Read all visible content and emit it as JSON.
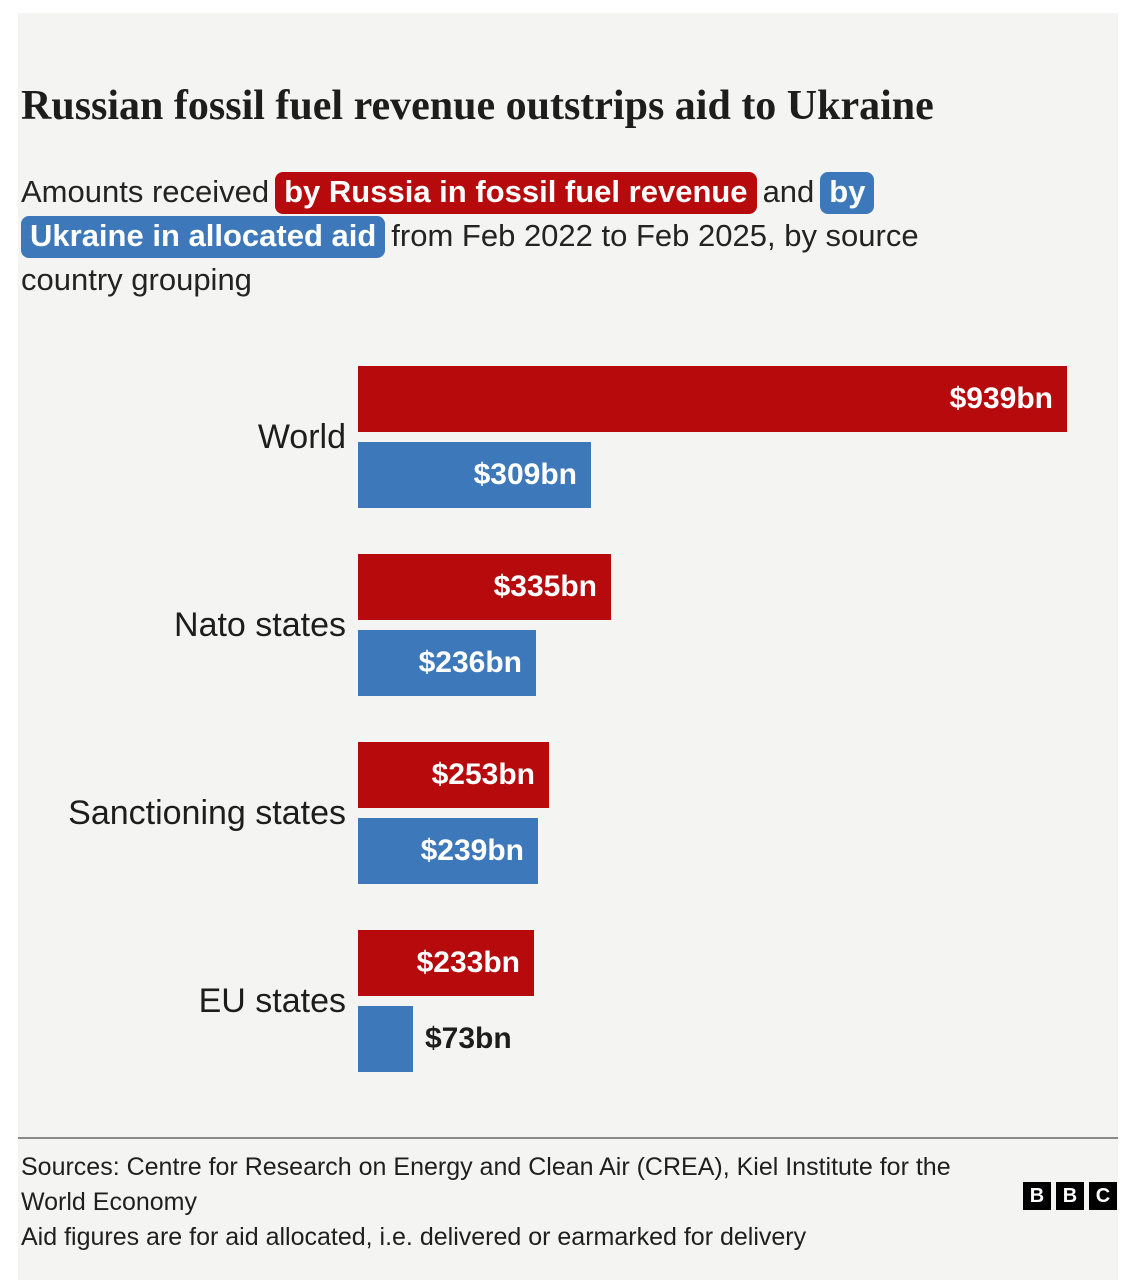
{
  "title": "Russian fossil fuel revenue outstrips aid to Ukraine",
  "subtitle": {
    "line1_pre": "Amounts received",
    "chip_red": "by Russia in fossil fuel revenue",
    "line1_and": "and",
    "chip_blue_by": "by",
    "chip_blue_rest": "Ukraine in allocated aid",
    "line2_rest": "from Feb 2022 to Feb 2025, by source",
    "line3": "country grouping"
  },
  "colors": {
    "russia_red": "#b60a0c",
    "ukraine_blue": "#3d78ba",
    "panel_bg": "#f4f4f3",
    "text": "#1d1d1b",
    "divider": "#8b8b8b"
  },
  "chart_data": {
    "type": "bar",
    "orientation": "horizontal",
    "unit": "USD billions",
    "period": "Feb 2022 to Feb 2025",
    "categories": [
      "World",
      "Nato states",
      "Sanctioning states",
      "EU states"
    ],
    "series": [
      {
        "name": "Russia fossil fuel revenue",
        "color_key": "russia_red",
        "values": [
          939,
          335,
          253,
          233
        ],
        "labels": [
          "$939bn",
          "$335bn",
          "$253bn",
          "$233bn"
        ]
      },
      {
        "name": "Ukraine allocated aid",
        "color_key": "ukraine_blue",
        "values": [
          309,
          236,
          239,
          73
        ],
        "labels": [
          "$309bn",
          "$236bn",
          "$239bn",
          "$73bn"
        ]
      }
    ],
    "xmax": 939,
    "grid": false,
    "legend": "inline-subtitle-highlights"
  },
  "footer": {
    "sources": "Sources: Centre for Research on Energy and Clean Air (CREA), Kiel Institute for the World Economy",
    "note": "Aid figures are for aid allocated, i.e. delivered or earmarked for delivery",
    "logo_letters": [
      "B",
      "B",
      "C"
    ]
  }
}
